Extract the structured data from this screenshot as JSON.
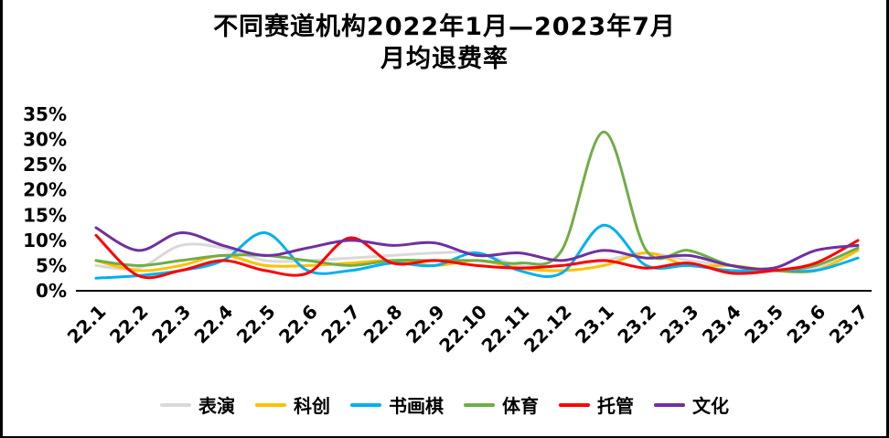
{
  "chart_data": {
    "type": "line",
    "title": "不同赛道机构2022年1月—2023年7月",
    "subtitle": "月均退费率",
    "categories": [
      "22.1",
      "22.2",
      "22.3",
      "22.4",
      "22.5",
      "22.6",
      "22.7",
      "22.8",
      "22.9",
      "22.10",
      "22.11",
      "22.12",
      "23.1",
      "23.2",
      "23.3",
      "23.4",
      "23.5",
      "23.6",
      "23.7"
    ],
    "ylabel": "",
    "xlabel": "",
    "ylim": [
      0,
      35
    ],
    "ytick_step": 5,
    "ytick_format": "percent",
    "grid": false,
    "line_style": "smooth",
    "legend_position": "bottom",
    "series": [
      {
        "name": "表演",
        "color": "#D9D9D9",
        "values": [
          5,
          4.5,
          9,
          8.5,
          6,
          6,
          6.5,
          7,
          7.5,
          7.5,
          5,
          5,
          6,
          7.5,
          6,
          5,
          4,
          4.5,
          8
        ]
      },
      {
        "name": "科创",
        "color": "#FFC000",
        "values": [
          6,
          4,
          5,
          7,
          5,
          5,
          5.5,
          6,
          5,
          6,
          4.5,
          4,
          5,
          7.5,
          5,
          5,
          4,
          4,
          8
        ]
      },
      {
        "name": "书画棋",
        "color": "#00B0F0",
        "values": [
          2.5,
          3,
          4,
          6,
          11.5,
          4,
          4,
          5.5,
          5,
          7.5,
          4,
          3.5,
          13,
          5,
          5,
          4,
          4,
          4,
          6.5
        ]
      },
      {
        "name": "体育",
        "color": "#70AD47",
        "values": [
          6,
          5,
          6,
          7,
          7,
          6,
          5,
          6,
          6,
          6,
          5.5,
          8,
          31.5,
          8,
          8,
          5,
          4,
          5,
          8.5
        ]
      },
      {
        "name": "托管",
        "color": "#FF0000",
        "values": [
          11,
          3,
          4,
          6,
          4,
          3.5,
          10.5,
          5.5,
          6,
          5,
          4.5,
          5,
          6,
          4.5,
          5.5,
          3.5,
          4,
          5.5,
          10
        ]
      },
      {
        "name": "文化",
        "color": "#7030A0",
        "values": [
          12.5,
          8,
          11.5,
          9,
          7,
          8.5,
          10,
          9,
          9.5,
          7,
          7.5,
          6,
          8,
          6.5,
          7,
          5,
          4.5,
          8,
          9
        ]
      }
    ],
    "y_tick_labels": [
      "0%",
      "5%",
      "10%",
      "15%",
      "20%",
      "25%",
      "30%",
      "35%"
    ]
  }
}
